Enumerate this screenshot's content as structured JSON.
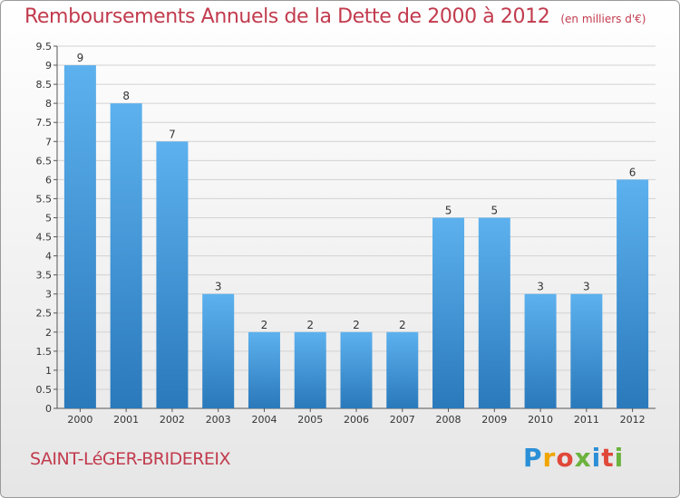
{
  "chart_data": {
    "type": "bar",
    "title": "Remboursements Annuels de la Dette de 2000 à 2012",
    "unit_label": "(en milliers d'€)",
    "xlabel": "",
    "ylabel": "",
    "ylim": [
      0,
      9.5
    ],
    "yticks": [
      "0",
      "0.5",
      "1",
      "1.5",
      "2",
      "2.5",
      "3",
      "3.5",
      "4",
      "4.5",
      "5",
      "5.5",
      "6",
      "6.5",
      "7",
      "7.5",
      "8",
      "8.5",
      "9",
      "9.5"
    ],
    "categories": [
      "2000",
      "2001",
      "2002",
      "2003",
      "2004",
      "2005",
      "2006",
      "2007",
      "2008",
      "2009",
      "2010",
      "2011",
      "2012"
    ],
    "values": [
      9,
      8,
      7,
      3,
      2,
      2,
      2,
      2,
      5,
      5,
      3,
      3,
      6
    ],
    "grid": true,
    "bar_color": "#4aa3e6"
  },
  "footer": {
    "commune": "SAINT-LéGER-BRIDEREIX",
    "brand": "Proxiti",
    "brand_colors": [
      "#2a8fd6",
      "#6cb33e",
      "#f0a500",
      "#e0493a"
    ]
  }
}
